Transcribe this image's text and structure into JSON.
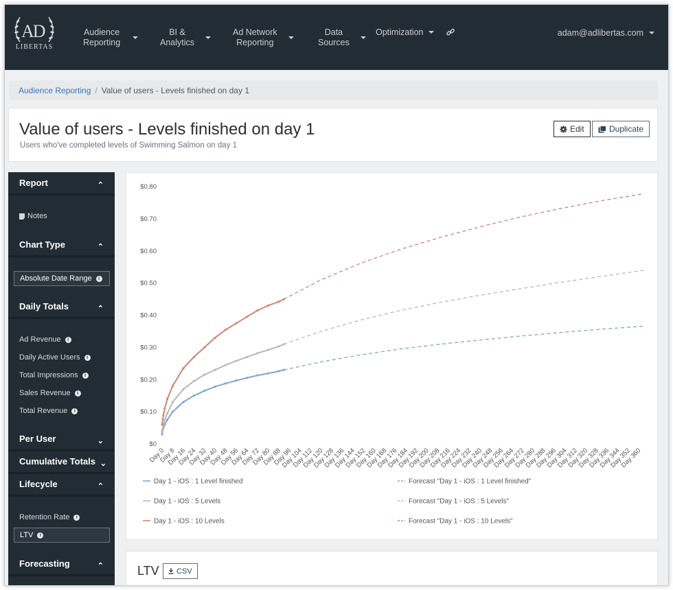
{
  "logo": {
    "top": "AD",
    "bottom": "LIBERTAS"
  },
  "nav": {
    "items": [
      {
        "label": "Audience\nReporting"
      },
      {
        "label": "BI &\nAnalytics"
      },
      {
        "label": "Ad Network\nReporting"
      },
      {
        "label": "Data\nSources"
      },
      {
        "label": "Optimization"
      }
    ],
    "user": "adam@adlibertas.com"
  },
  "breadcrumb": {
    "parent": "Audience Reporting",
    "current": "Value of users - Levels finished on day 1"
  },
  "header": {
    "title": "Value of users - Levels finished on day 1",
    "subtitle": "Users who've completed levels of Swimming Salmon on day 1",
    "edit_label": "Edit",
    "duplicate_label": "Duplicate"
  },
  "sidebar": {
    "report": {
      "title": "Report",
      "notes": "Notes"
    },
    "chart_type": {
      "title": "Chart Type",
      "selected": "Absolute Date Range"
    },
    "daily_totals": {
      "title": "Daily Totals",
      "items": [
        "Ad Revenue",
        "Daily Active Users",
        "Total Impressions",
        "Sales Revenue",
        "Total Revenue"
      ]
    },
    "per_user": {
      "title": "Per User"
    },
    "cumulative": {
      "title": "Cumulative Totals"
    },
    "lifecycle": {
      "title": "Lifecycle",
      "retention": "Retention Rate",
      "ltv": "LTV"
    },
    "forecasting": {
      "title": "Forecasting"
    }
  },
  "ltv_section": {
    "title": "LTV",
    "csv_label": "CSV"
  },
  "colors": {
    "blue": "#7ea6cd",
    "gray": "#b8b8b8",
    "red": "#cf8575",
    "nav_bg": "#222c34"
  },
  "chart_data": {
    "type": "line",
    "title": "",
    "xlabel": "",
    "ylabel": "",
    "x_tick_labels": [
      "Day 0",
      "Day 8",
      "Day 16",
      "Day 24",
      "Day 32",
      "Day 40",
      "Day 48",
      "Day 56",
      "Day 64",
      "Day 72",
      "Day 80",
      "Day 88",
      "Day 96",
      "Day 104",
      "Day 112",
      "Day 120",
      "Day 128",
      "Day 136",
      "Day 144",
      "Day 152",
      "Day 160",
      "Day 168",
      "Day 176",
      "Day 184",
      "Day 192",
      "Day 200",
      "Day 208",
      "Day 216",
      "Day 224",
      "Day 232",
      "Day 240",
      "Day 248",
      "Day 256",
      "Day 264",
      "Day 272",
      "Day 280",
      "Day 288",
      "Day 296",
      "Day 304",
      "Day 312",
      "Day 320",
      "Day 328",
      "Day 336",
      "Day 344",
      "Day 352",
      "Day 360"
    ],
    "y_tick_labels": [
      "$0",
      "$0.10",
      "$0.20",
      "$0.30",
      "$0.40",
      "$0.50",
      "$0.60",
      "$0.70",
      "$0.80"
    ],
    "ylim": [
      0,
      0.8
    ],
    "xlim": [
      0,
      364
    ],
    "grid": false,
    "legend_position": "bottom",
    "series": [
      {
        "name": "Day 1 - iOS : 1 Level finished",
        "color": "#7ea6cd",
        "dashed": false,
        "x": [
          0,
          1,
          2,
          4,
          8,
          16,
          24,
          32,
          40,
          48,
          56,
          64,
          72,
          80,
          88,
          92
        ],
        "y": [
          0.03,
          0.05,
          0.06,
          0.075,
          0.1,
          0.13,
          0.15,
          0.165,
          0.178,
          0.188,
          0.197,
          0.205,
          0.213,
          0.219,
          0.226,
          0.23
        ]
      },
      {
        "name": "Day 1 - iOS : 5 Levels",
        "color": "#b8b8b8",
        "dashed": false,
        "x": [
          0,
          1,
          2,
          4,
          8,
          16,
          24,
          32,
          40,
          48,
          56,
          64,
          72,
          80,
          88,
          92
        ],
        "y": [
          0.04,
          0.06,
          0.075,
          0.095,
          0.13,
          0.17,
          0.195,
          0.215,
          0.23,
          0.245,
          0.258,
          0.27,
          0.282,
          0.292,
          0.303,
          0.31
        ]
      },
      {
        "name": "Day 1 - iOS : 10 Levels",
        "color": "#cf8575",
        "dashed": false,
        "x": [
          0,
          1,
          2,
          4,
          8,
          16,
          24,
          32,
          40,
          48,
          56,
          64,
          72,
          80,
          88,
          92
        ],
        "y": [
          0.06,
          0.09,
          0.11,
          0.14,
          0.18,
          0.235,
          0.27,
          0.3,
          0.33,
          0.355,
          0.375,
          0.395,
          0.415,
          0.43,
          0.442,
          0.45
        ]
      },
      {
        "name": "Forecast \"Day 1 - iOS : 1 Level finished\"",
        "color": "#7ea6cd",
        "dashed": true,
        "x": [
          92,
          120,
          150,
          180,
          210,
          240,
          270,
          300,
          330,
          364
        ],
        "y": [
          0.23,
          0.255,
          0.277,
          0.295,
          0.31,
          0.323,
          0.335,
          0.346,
          0.356,
          0.366
        ]
      },
      {
        "name": "Forecast \"Day 1 - iOS : 5 Levels\"",
        "color": "#b8b8b8",
        "dashed": true,
        "x": [
          92,
          120,
          150,
          180,
          210,
          240,
          270,
          300,
          330,
          364
        ],
        "y": [
          0.31,
          0.35,
          0.385,
          0.415,
          0.44,
          0.462,
          0.482,
          0.502,
          0.52,
          0.54
        ]
      },
      {
        "name": "Forecast \"Day 1 - iOS : 10 Levels\"",
        "color": "#cf8575",
        "dashed": true,
        "x": [
          92,
          120,
          150,
          180,
          210,
          240,
          270,
          300,
          330,
          364
        ],
        "y": [
          0.45,
          0.51,
          0.562,
          0.605,
          0.642,
          0.675,
          0.705,
          0.731,
          0.755,
          0.778
        ]
      }
    ]
  }
}
